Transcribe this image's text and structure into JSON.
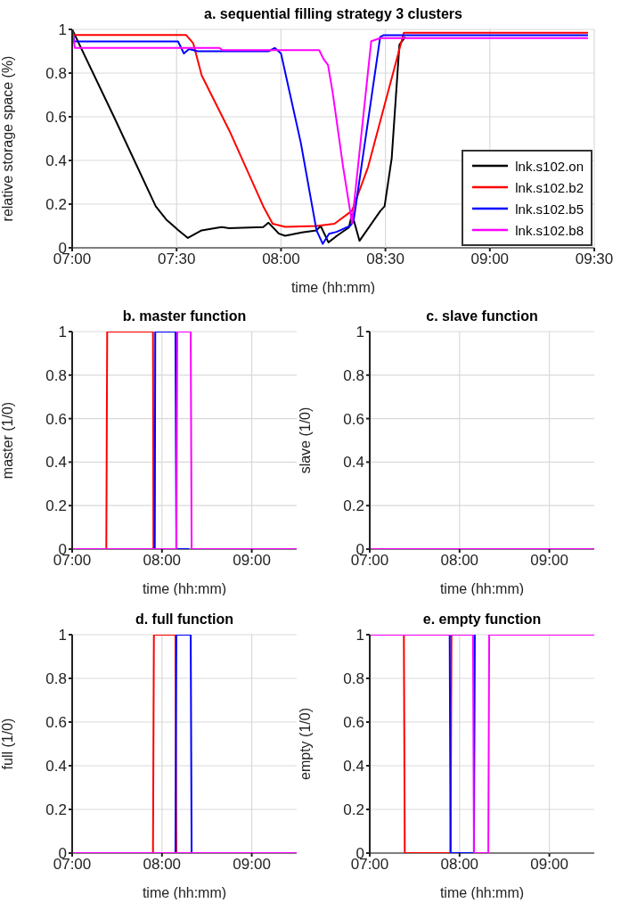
{
  "chart_data": [
    {
      "type": "line",
      "title": "a. sequential filling strategy 3 clusters",
      "xlabel": "time (hh:mm)",
      "ylabel": "relative storage space (%)",
      "xlim": [
        7,
        9.5
      ],
      "xticks": [
        {
          "value": 7,
          "label": "07:00"
        },
        {
          "value": 7.5,
          "label": "07:30"
        },
        {
          "value": 8,
          "label": "08:00"
        },
        {
          "value": 8.5,
          "label": "08:30"
        },
        {
          "value": 9,
          "label": "09:00"
        },
        {
          "value": 9.5,
          "label": "09:30"
        }
      ],
      "ylim": [
        0,
        1
      ],
      "yticks": [
        0,
        0.2,
        0.4,
        0.6,
        0.8,
        1
      ],
      "grid": true,
      "legend": "bottom right",
      "series": [
        {
          "name": "lnk.s102.on",
          "color": "#000000",
          "x": [
            7,
            7.2,
            7.4,
            7.45,
            7.507,
            7.554,
            7.62,
            7.715,
            7.75,
            7.915,
            7.94,
            7.99,
            8.02,
            8.1,
            8.17,
            8.19,
            8.227,
            8.275,
            8.325,
            8.34,
            8.376,
            8.475,
            8.496,
            8.53,
            8.567,
            8.595
          ],
          "values": [
            1,
            0.6,
            0.19,
            0.13,
            0.082,
            0.045,
            0.08,
            0.095,
            0.09,
            0.095,
            0.115,
            0.065,
            0.055,
            0.07,
            0.08,
            0.1,
            0.025,
            0.06,
            0.093,
            0.155,
            0.032,
            0.168,
            0.19,
            0.41,
            0.93,
            0.966
          ]
        },
        {
          "name": "lnk.s102.b2",
          "color": "#ff0000",
          "x": [
            7,
            7.545,
            7.58,
            7.62,
            7.753,
            7.915,
            7.96,
            8.02,
            8.17,
            8.256,
            8.34,
            8.417,
            8.503,
            8.588,
            9.47
          ],
          "values": [
            0.975,
            0.975,
            0.936,
            0.79,
            0.536,
            0.19,
            0.11,
            0.096,
            0.1,
            0.11,
            0.17,
            0.37,
            0.68,
            0.985,
            0.985
          ]
        },
        {
          "name": "lnk.s102.b5",
          "color": "#0000ff",
          "x": [
            7,
            7.01,
            7.507,
            7.535,
            7.56,
            7.6,
            7.94,
            7.97,
            8,
            8.095,
            8.17,
            8.2,
            8.23,
            8.266,
            8.33,
            8.347,
            8.475,
            8.49,
            9.47
          ],
          "values": [
            1,
            0.945,
            0.945,
            0.89,
            0.91,
            0.9,
            0.9,
            0.915,
            0.89,
            0.48,
            0.08,
            0.018,
            0.064,
            0.073,
            0.1,
            0.12,
            0.966,
            0.973,
            0.973
          ]
        },
        {
          "name": "lnk.s102.b8",
          "color": "#ff00ff",
          "x": [
            7,
            7.013,
            7.706,
            7.72,
            8.17,
            8.183,
            8.204,
            8.225,
            8.247,
            8.297,
            8.34,
            8.432,
            8.475,
            9.47
          ],
          "values": [
            1,
            0.915,
            0.915,
            0.905,
            0.905,
            0.905,
            0.864,
            0.837,
            0.714,
            0.373,
            0.114,
            0.946,
            0.96,
            0.96
          ]
        }
      ]
    },
    {
      "type": "line",
      "title": "b. master function",
      "xlabel": "time (hh:mm)",
      "ylabel": "master (1/0)",
      "xlim": [
        7,
        9.5
      ],
      "xticks": [
        {
          "value": 7,
          "label": "07:00"
        },
        {
          "value": 8,
          "label": "08:00"
        },
        {
          "value": 9,
          "label": "09:00"
        }
      ],
      "ylim": [
        0,
        1
      ],
      "yticks": [
        0,
        0.2,
        0.4,
        0.6,
        0.8,
        1
      ],
      "grid": true,
      "series": [
        {
          "color": "#ff0000",
          "x": [
            7.38,
            7.39,
            7.9,
            7.905
          ],
          "values": [
            0,
            1,
            1,
            0
          ]
        },
        {
          "color": "#0000ff",
          "x": [
            7.92,
            7.925,
            8.15,
            8.16,
            8.3
          ],
          "values": [
            0,
            1,
            1,
            0,
            0
          ]
        },
        {
          "color": "#ff00ff",
          "x": [
            7,
            8.16,
            8.17,
            8.32,
            8.33,
            9.5
          ],
          "values": [
            0,
            0,
            1,
            1,
            0,
            0
          ]
        }
      ]
    },
    {
      "type": "line",
      "title": "c. slave function",
      "xlabel": "time (hh:mm)",
      "ylabel": "slave (1/0)",
      "xlim": [
        7,
        9.5
      ],
      "xticks": [
        {
          "value": 7,
          "label": "07:00"
        },
        {
          "value": 8,
          "label": "08:00"
        },
        {
          "value": 9,
          "label": "09:00"
        }
      ],
      "ylim": [
        0,
        1
      ],
      "yticks": [
        0,
        0.2,
        0.4,
        0.6,
        0.8,
        1
      ],
      "grid": true,
      "series": [
        {
          "color": "#ff00ff",
          "x": [
            7,
            9.5
          ],
          "values": [
            0,
            0
          ]
        }
      ]
    },
    {
      "type": "line",
      "title": "d. full function",
      "xlabel": "time (hh:mm)",
      "ylabel": "full (1/0)",
      "xlim": [
        7,
        9.5
      ],
      "xticks": [
        {
          "value": 7,
          "label": "07:00"
        },
        {
          "value": 8,
          "label": "08:00"
        },
        {
          "value": 9,
          "label": "09:00"
        }
      ],
      "ylim": [
        0,
        1
      ],
      "yticks": [
        0,
        0.2,
        0.4,
        0.6,
        0.8,
        1
      ],
      "grid": true,
      "series": [
        {
          "color": "#ff0000",
          "x": [
            7.9,
            7.91,
            8.15,
            8.16
          ],
          "values": [
            0,
            1,
            1,
            0
          ]
        },
        {
          "color": "#0000ff",
          "x": [
            8.15,
            8.16,
            8.32,
            8.33
          ],
          "values": [
            0,
            1,
            1,
            0
          ]
        },
        {
          "color": "#ff00ff",
          "x": [
            7,
            9.5
          ],
          "values": [
            0,
            0
          ]
        }
      ]
    },
    {
      "type": "line",
      "title": "e. empty function",
      "xlabel": "time (hh:mm)",
      "ylabel": "empty (1/0)",
      "xlim": [
        7,
        9.5
      ],
      "xticks": [
        {
          "value": 7,
          "label": "07:00"
        },
        {
          "value": 8,
          "label": "08:00"
        },
        {
          "value": 9,
          "label": "09:00"
        }
      ],
      "ylim": [
        0,
        1
      ],
      "yticks": [
        0,
        0.2,
        0.4,
        0.6,
        0.8,
        1
      ],
      "grid": true,
      "series": [
        {
          "color": "#ff0000",
          "x": [
            7,
            7.38,
            7.39,
            7.9,
            7.91
          ],
          "values": [
            1,
            1,
            0,
            0,
            1
          ]
        },
        {
          "color": "#0000ff",
          "x": [
            7,
            7.89,
            7.9,
            8.16,
            8.17
          ],
          "values": [
            1,
            1,
            0,
            0,
            1
          ]
        },
        {
          "color": "#ff00ff",
          "x": [
            7,
            8.15,
            8.16,
            8.32,
            8.33,
            9.5
          ],
          "values": [
            1,
            1,
            0,
            0,
            1,
            1
          ]
        }
      ]
    }
  ]
}
